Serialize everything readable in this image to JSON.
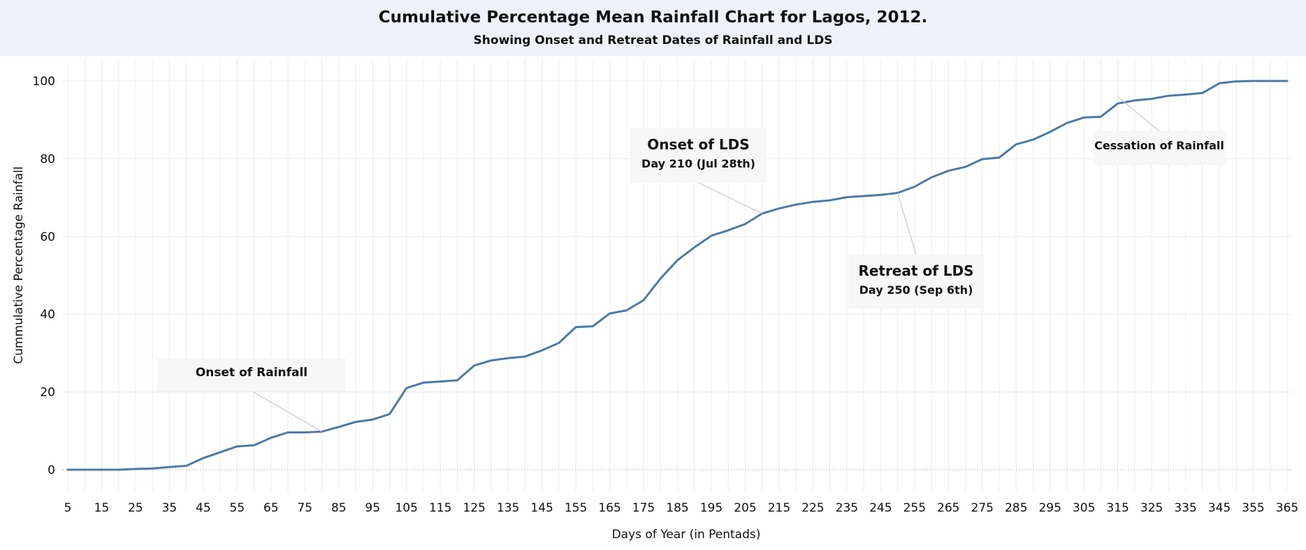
{
  "chart_data": {
    "type": "line",
    "title": "Cumulative Percentage Mean Rainfall Chart for Lagos, 2012.",
    "subtitle": "Showing Onset and Retreat Dates of Rainfall and LDS",
    "xlabel": "Days of Year (in Pentads)",
    "ylabel": "Cummulative Percentage Rainfall",
    "xlim": [
      5,
      365
    ],
    "ylim": [
      0,
      100
    ],
    "x_tick_labels": [
      5,
      15,
      25,
      35,
      45,
      55,
      65,
      75,
      85,
      95,
      105,
      115,
      125,
      135,
      145,
      155,
      165,
      175,
      185,
      195,
      205,
      215,
      225,
      235,
      245,
      255,
      265,
      275,
      285,
      295,
      305,
      315,
      325,
      335,
      345,
      355,
      365
    ],
    "y_ticks": [
      0,
      20,
      40,
      60,
      80,
      100
    ],
    "grid": true,
    "color": "#4e79a7",
    "series": [
      {
        "x": [
          5,
          10,
          15,
          20,
          25,
          30,
          35,
          40,
          45,
          50,
          55,
          60,
          65,
          70,
          75,
          80,
          85,
          90,
          95,
          100,
          105,
          110,
          115,
          120,
          125,
          130,
          135,
          140,
          145,
          150,
          155,
          160,
          165,
          170,
          175,
          180,
          185,
          190,
          195,
          200,
          205,
          210,
          215,
          220,
          225,
          230,
          235,
          240,
          245,
          250,
          255,
          260,
          265,
          270,
          275,
          280,
          285,
          290,
          295,
          300,
          305,
          310,
          315,
          320,
          325,
          330,
          335,
          340,
          345,
          350,
          355,
          360,
          365
        ],
        "y": [
          0,
          0,
          0,
          0,
          0.2,
          0.3,
          0.7,
          1.0,
          3.0,
          4.5,
          6.0,
          6.3,
          8.2,
          9.6,
          9.6,
          9.8,
          11.0,
          12.3,
          12.9,
          14.3,
          21.0,
          22.4,
          22.7,
          23.0,
          26.8,
          28.1,
          28.7,
          29.1,
          30.7,
          32.6,
          36.7,
          36.9,
          40.2,
          41.0,
          43.6,
          49.2,
          53.9,
          57.2,
          60.2,
          61.6,
          63.2,
          65.9,
          67.2,
          68.2,
          68.9,
          69.3,
          70.1,
          70.4,
          70.7,
          71.2,
          72.8,
          75.2,
          76.9,
          77.9,
          79.9,
          80.3,
          83.7,
          84.9,
          86.9,
          89.2,
          90.6,
          90.8,
          94.2,
          95.0,
          95.4,
          96.2,
          96.5,
          96.9,
          99.4,
          99.9,
          100,
          100,
          100
        ]
      }
    ],
    "annotations": [
      {
        "line1": "Onset of Rainfall",
        "line2": "",
        "target_x": 80,
        "target_y": 9.8
      },
      {
        "line1": "Onset of LDS",
        "line2": "Day 210 (Jul 28th)",
        "target_x": 210,
        "target_y": 65.9
      },
      {
        "line1": "Retreat of LDS",
        "line2": "Day 250 (Sep 6th)",
        "target_x": 250,
        "target_y": 71.2
      },
      {
        "line1": "Cessation of Rainfall",
        "line2": "",
        "target_x": 315,
        "target_y": 96
      }
    ]
  }
}
